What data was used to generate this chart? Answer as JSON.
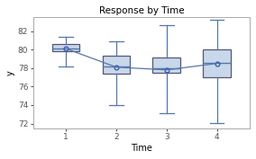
{
  "title": "Response by Time",
  "xlabel": "Time",
  "ylabel": "y",
  "ylim": [
    71.5,
    83.5
  ],
  "xlim": [
    0.35,
    4.65
  ],
  "yticks": [
    72,
    74,
    76,
    78,
    80,
    82
  ],
  "xticks": [
    1,
    2,
    3,
    4
  ],
  "fig_facecolor": "#ffffff",
  "ax_facecolor": "#ffffff",
  "box_facecolor": "#c8d8ea",
  "box_edgecolor": "#555577",
  "whisker_color": "#5577aa",
  "median_color": "#5577aa",
  "mean_color": "#3355aa",
  "line_color": "#5577aa",
  "spine_color": "#aaaaaa",
  "tick_color": "#555555",
  "boxes": [
    {
      "time": 1,
      "q1": 79.85,
      "median": 80.15,
      "q3": 80.55,
      "whislo": 78.2,
      "whishi": 81.4,
      "mean": 80.1
    },
    {
      "time": 2,
      "q1": 77.4,
      "median": 78.15,
      "q3": 79.3,
      "whislo": 74.0,
      "whishi": 80.9,
      "mean": 78.1
    },
    {
      "time": 3,
      "q1": 77.5,
      "median": 78.0,
      "q3": 79.1,
      "whislo": 73.1,
      "whishi": 82.6,
      "mean": 77.8
    },
    {
      "time": 4,
      "q1": 77.0,
      "median": 78.6,
      "q3": 80.05,
      "whislo": 72.1,
      "whishi": 83.2,
      "mean": 78.5
    }
  ]
}
